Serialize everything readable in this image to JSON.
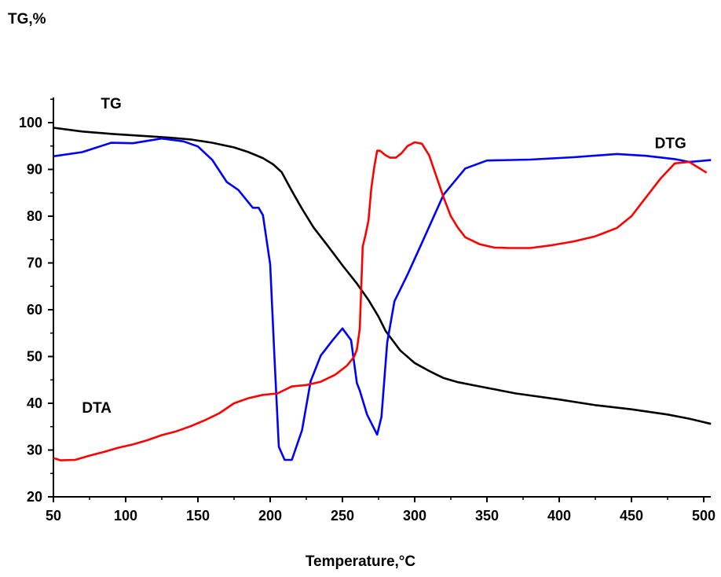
{
  "chart_data": {
    "type": "line",
    "ylabel": "TG,%",
    "xlabel": "Temperature,°C",
    "xlim": [
      50,
      505
    ],
    "ylim": [
      20,
      104
    ],
    "x_ticks": [
      50,
      100,
      150,
      200,
      250,
      300,
      350,
      400,
      450,
      500
    ],
    "y_ticks": [
      20,
      30,
      40,
      50,
      60,
      70,
      80,
      90,
      100
    ],
    "grid": false,
    "series_labels": [
      {
        "text": "TG",
        "x": 90,
        "y": 103
      },
      {
        "text": "DTG",
        "x": 477,
        "y": 94.5
      },
      {
        "text": "DTA",
        "x": 80,
        "y": 38
      }
    ],
    "series": [
      {
        "name": "TG",
        "color": "#000000",
        "x": [
          50,
          70,
          90,
          110,
          130,
          145,
          160,
          175,
          185,
          195,
          202,
          208,
          215,
          222,
          230,
          240,
          250,
          260,
          268,
          275,
          280,
          290,
          300,
          310,
          320,
          330,
          345,
          370,
          400,
          425,
          450,
          475,
          490,
          505
        ],
        "y": [
          98.9,
          98.1,
          97.6,
          97.2,
          96.8,
          96.4,
          95.7,
          94.7,
          93.7,
          92.4,
          91.1,
          89.4,
          85.4,
          81.6,
          77.6,
          73.6,
          69.5,
          65.6,
          62.1,
          58.5,
          55.4,
          51.3,
          48.6,
          46.9,
          45.4,
          44.5,
          43.6,
          42.1,
          40.8,
          39.6,
          38.7,
          37.6,
          36.7,
          35.6
        ]
      },
      {
        "name": "DTG",
        "color": "#0000ff",
        "x": [
          50,
          70,
          90,
          105,
          125,
          140,
          150,
          160,
          170,
          178,
          188,
          192,
          195,
          200,
          203,
          206,
          210,
          215,
          222,
          228,
          235,
          243,
          250,
          256,
          260,
          262,
          267,
          274,
          277,
          281,
          286,
          295,
          305,
          320,
          335,
          350,
          380,
          410,
          440,
          460,
          480,
          490,
          505
        ],
        "y": [
          92.8,
          93.7,
          95.7,
          95.6,
          96.6,
          96.0,
          94.9,
          92.0,
          87.3,
          85.6,
          81.8,
          81.8,
          80.2,
          69.7,
          49.7,
          30.7,
          27.9,
          27.9,
          34.2,
          44.7,
          50.2,
          53.4,
          56.0,
          53.5,
          44.3,
          42.7,
          37.6,
          33.3,
          37.1,
          53.0,
          61.8,
          67.5,
          74.3,
          84.6,
          90.2,
          91.9,
          92.1,
          92.6,
          93.3,
          92.9,
          92.2,
          91.6,
          92.0
        ]
      },
      {
        "name": "DTA",
        "color": "#ff0000",
        "x": [
          50,
          55,
          65,
          75,
          85,
          95,
          105,
          115,
          125,
          135,
          145,
          155,
          165,
          175,
          185,
          195,
          205,
          215,
          225,
          235,
          245,
          253,
          258,
          260,
          262,
          264,
          266,
          268,
          270,
          272,
          274,
          276,
          278,
          280,
          283,
          287,
          291,
          295,
          300,
          305,
          310,
          315,
          320,
          325,
          330,
          335,
          345,
          355,
          365,
          380,
          395,
          410,
          425,
          440,
          450,
          460,
          470,
          480,
          490,
          502
        ],
        "y": [
          28.3,
          27.8,
          27.9,
          28.8,
          29.6,
          30.5,
          31.2,
          32.1,
          33.2,
          34.0,
          35.1,
          36.4,
          37.9,
          40.0,
          41.1,
          41.8,
          42.1,
          43.6,
          43.9,
          44.6,
          46.1,
          48.0,
          49.9,
          51.5,
          56.0,
          73.5,
          76.0,
          79.0,
          86.0,
          90.5,
          94.0,
          94.0,
          93.5,
          93.0,
          92.5,
          92.5,
          93.5,
          95.0,
          95.8,
          95.5,
          93.0,
          88.5,
          84.0,
          80.0,
          77.5,
          75.5,
          74.0,
          73.3,
          73.2,
          73.2,
          73.8,
          74.6,
          75.7,
          77.5,
          80.0,
          84.0,
          88.0,
          91.3,
          91.6,
          89.3
        ]
      }
    ]
  }
}
